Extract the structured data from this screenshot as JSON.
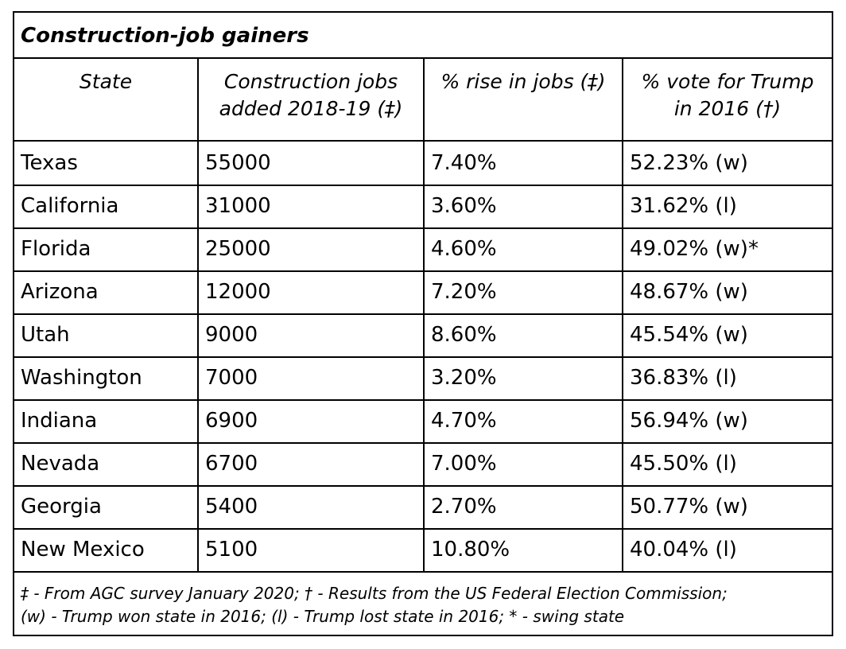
{
  "title": "Construction-job gainers",
  "headers": [
    [
      "State"
    ],
    [
      "Construction jobs",
      "added 2018-19 (‡)"
    ],
    [
      "% rise in jobs (‡)"
    ],
    [
      "% vote for Trump",
      "in 2016 (†)"
    ]
  ],
  "rows": [
    [
      "Texas",
      "55000",
      "7.40%",
      "52.23% (w)"
    ],
    [
      "California",
      "31000",
      "3.60%",
      "31.62% (l)"
    ],
    [
      "Florida",
      "25000",
      "4.60%",
      "49.02% (w)*"
    ],
    [
      "Arizona",
      "12000",
      "7.20%",
      "48.67% (w)"
    ],
    [
      "Utah",
      "9000",
      "8.60%",
      "45.54% (w)"
    ],
    [
      "Washington",
      "7000",
      "3.20%",
      "36.83% (l)"
    ],
    [
      "Indiana",
      "6900",
      "4.70%",
      "56.94% (w)"
    ],
    [
      "Nevada",
      "6700",
      "7.00%",
      "45.50% (l)"
    ],
    [
      "Georgia",
      "5400",
      "2.70%",
      "50.77% (w)"
    ],
    [
      "New Mexico",
      "5100",
      "10.80%",
      "40.04% (l)"
    ]
  ],
  "footnotes": [
    "‡ - From AGC survey January 2020; † - Results from the US Federal Election Commission;",
    "(w) - Trump won state in 2016; (l) - Trump lost state in 2016; * - swing state"
  ]
}
